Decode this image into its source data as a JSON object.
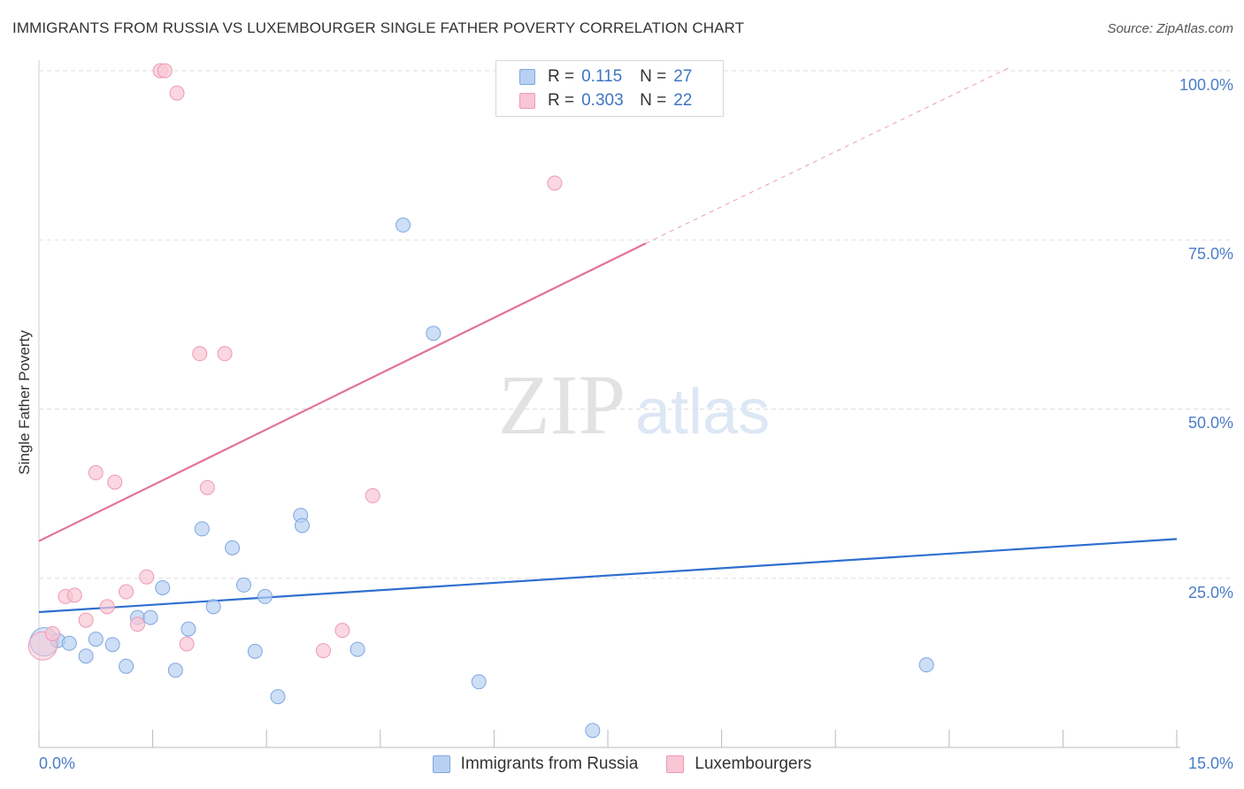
{
  "header": {
    "title": "IMMIGRANTS FROM RUSSIA VS LUXEMBOURGER SINGLE FATHER POVERTY CORRELATION CHART",
    "source": "Source: ZipAtlas.com"
  },
  "watermark": {
    "zip": "ZIP",
    "atlas": "atlas"
  },
  "legend": {
    "rows": [
      {
        "r_label": "R =",
        "r_value": "0.115",
        "n_label": "N =",
        "n_value": "27"
      },
      {
        "r_label": "R =",
        "r_value": "0.303",
        "n_label": "N =",
        "n_value": "22"
      }
    ]
  },
  "chart_data": {
    "type": "scatter",
    "title": "IMMIGRANTS FROM RUSSIA VS LUXEMBOURGER SINGLE FATHER POVERTY CORRELATION CHART",
    "xlabel": "",
    "ylabel": "Single Father Poverty",
    "xlim": [
      0,
      15
    ],
    "ylim": [
      0,
      102
    ],
    "x_tick_labels": [
      "0.0%",
      "15.0%"
    ],
    "y_ticks": [
      25,
      50,
      75,
      100
    ],
    "y_tick_labels": [
      "25.0%",
      "50.0%",
      "75.0%",
      "100.0%"
    ],
    "grid": "horizontal dashed",
    "colors": {
      "russia_fill": "#b8d0f2",
      "russia_stroke": "#7fa7e0",
      "russia_line": "#2e6fd0",
      "lux_fill": "#f8c6d4",
      "lux_stroke": "#ee9ab3",
      "lux_line": "#e3729a"
    },
    "series": [
      {
        "name": "Immigrants from Russia",
        "r": 0.115,
        "n": 27,
        "trend": {
          "x": [
            0,
            15
          ],
          "y": [
            20.0,
            30.8
          ]
        },
        "points": [
          {
            "x": 0.07,
            "y": 15.6,
            "big": true
          },
          {
            "x": 0.25,
            "y": 15.8
          },
          {
            "x": 0.4,
            "y": 15.4
          },
          {
            "x": 0.62,
            "y": 13.5
          },
          {
            "x": 0.75,
            "y": 16.0
          },
          {
            "x": 0.97,
            "y": 15.2
          },
          {
            "x": 1.15,
            "y": 12.0
          },
          {
            "x": 1.3,
            "y": 19.2
          },
          {
            "x": 1.47,
            "y": 19.2
          },
          {
            "x": 1.63,
            "y": 23.6
          },
          {
            "x": 1.8,
            "y": 11.4
          },
          {
            "x": 1.97,
            "y": 17.5
          },
          {
            "x": 2.15,
            "y": 32.3
          },
          {
            "x": 2.3,
            "y": 20.8
          },
          {
            "x": 2.55,
            "y": 29.5
          },
          {
            "x": 2.7,
            "y": 24.0
          },
          {
            "x": 2.85,
            "y": 14.2
          },
          {
            "x": 2.98,
            "y": 22.3
          },
          {
            "x": 3.15,
            "y": 7.5
          },
          {
            "x": 3.45,
            "y": 34.3
          },
          {
            "x": 3.47,
            "y": 32.8
          },
          {
            "x": 4.2,
            "y": 14.5
          },
          {
            "x": 4.8,
            "y": 77.2
          },
          {
            "x": 5.2,
            "y": 61.2
          },
          {
            "x": 5.8,
            "y": 9.7
          },
          {
            "x": 7.3,
            "y": 2.5
          },
          {
            "x": 11.7,
            "y": 12.2
          }
        ]
      },
      {
        "name": "Luxembourgers",
        "r": 0.303,
        "n": 22,
        "trend": {
          "x": [
            0,
            8.0
          ],
          "y": [
            30.5,
            74.5
          ],
          "dash_x": [
            8.0,
            12.8
          ],
          "dash_y": [
            74.5,
            100.5
          ]
        },
        "points": [
          {
            "x": 0.05,
            "y": 15.0,
            "big": true
          },
          {
            "x": 0.18,
            "y": 16.8
          },
          {
            "x": 0.35,
            "y": 22.3
          },
          {
            "x": 0.47,
            "y": 22.5
          },
          {
            "x": 0.62,
            "y": 18.8
          },
          {
            "x": 0.75,
            "y": 40.6
          },
          {
            "x": 0.9,
            "y": 20.8
          },
          {
            "x": 1.0,
            "y": 39.2
          },
          {
            "x": 1.15,
            "y": 23.0
          },
          {
            "x": 1.3,
            "y": 18.2
          },
          {
            "x": 1.42,
            "y": 25.2
          },
          {
            "x": 1.6,
            "y": 100.0
          },
          {
            "x": 1.66,
            "y": 100.0
          },
          {
            "x": 1.82,
            "y": 96.7
          },
          {
            "x": 1.95,
            "y": 15.3
          },
          {
            "x": 2.12,
            "y": 58.2
          },
          {
            "x": 2.22,
            "y": 38.4
          },
          {
            "x": 2.45,
            "y": 58.2
          },
          {
            "x": 3.75,
            "y": 14.3
          },
          {
            "x": 4.0,
            "y": 17.3
          },
          {
            "x": 4.4,
            "y": 37.2
          },
          {
            "x": 6.8,
            "y": 83.4
          }
        ]
      }
    ]
  },
  "bottom_legend": [
    {
      "label": "Immigrants from Russia"
    },
    {
      "label": "Luxembourgers"
    }
  ]
}
